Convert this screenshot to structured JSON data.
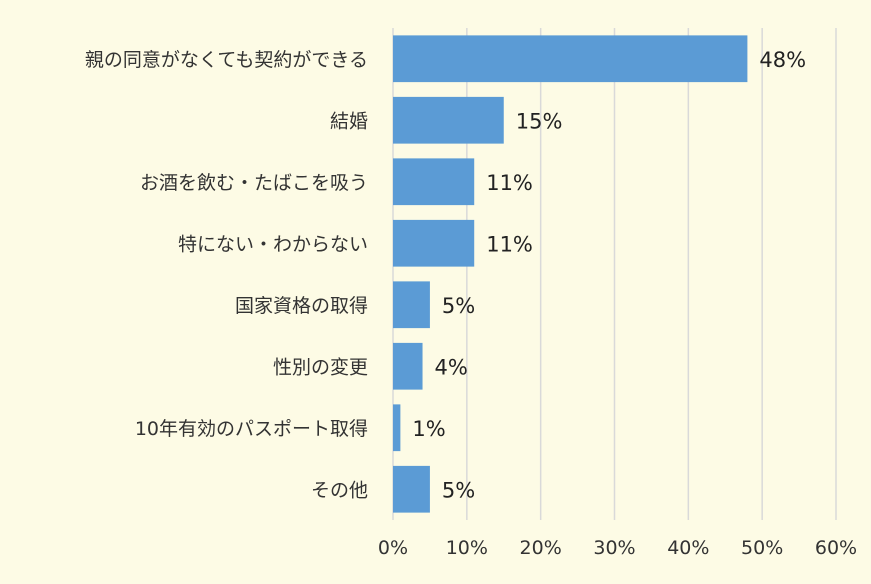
{
  "chart_data": {
    "type": "bar",
    "orientation": "horizontal",
    "categories": [
      "親の同意がなくても契約ができる",
      "結婚",
      "お酒を飲む・たばこを吸う",
      "特にない・わからない",
      "国家資格の取得",
      "性別の変更",
      "10年有効のパスポート取得",
      "その他"
    ],
    "values": [
      48,
      15,
      11,
      11,
      5,
      4,
      1,
      5
    ],
    "value_labels": [
      "48%",
      "15%",
      "11%",
      "11%",
      "5%",
      "4%",
      "1%",
      "5%"
    ],
    "xlim": [
      0,
      60
    ],
    "x_ticks": [
      0,
      10,
      20,
      30,
      40,
      50,
      60
    ],
    "x_tick_labels": [
      "0%",
      "10%",
      "20%",
      "30%",
      "40%",
      "50%",
      "60%"
    ],
    "grid": "vertical",
    "title": "",
    "xlabel": "",
    "ylabel": "",
    "colors": {
      "bar": "#5b9bd5",
      "grid": "#d9d9d9",
      "background": "#fdfbe5"
    }
  }
}
